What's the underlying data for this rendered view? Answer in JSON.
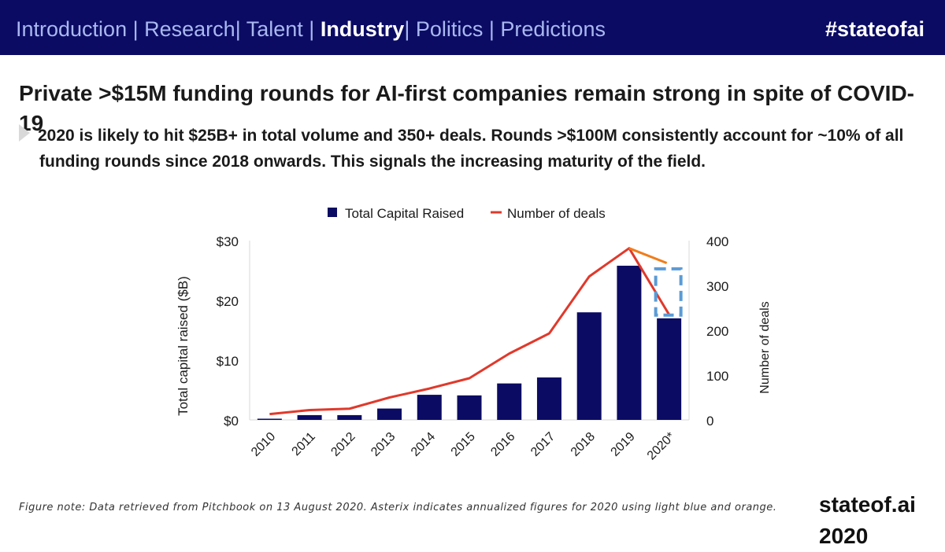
{
  "header": {
    "nav": [
      {
        "label": "Introduction",
        "active": false
      },
      {
        "label": "Research",
        "active": false
      },
      {
        "label": "Talent",
        "active": false
      },
      {
        "label": "Industry",
        "active": true
      },
      {
        "label": "Politics",
        "active": false
      },
      {
        "label": "Predictions",
        "active": false
      }
    ],
    "hashtag": "#stateofai"
  },
  "slide": {
    "title": "Private >$15M funding rounds for AI-first companies remain strong in spite of COVID-19",
    "subtitle_line1": "2020 is likely to hit $25B+ in total volume and 350+ deals. Rounds >$100M consistently account for ~10% of all",
    "subtitle_line2": "funding rounds since 2018 onwards. This signals the increasing maturity of the field."
  },
  "footer": {
    "note": "Figure note: Data retrieved from Pitchbook on 13 August 2020. Asterix indicates annualized figures for 2020 using light blue and orange.",
    "brand": "stateof.ai 2020"
  },
  "colors": {
    "bar": "#0b0b64",
    "line": "#e0392b",
    "projection_line": "#f07d1a",
    "projection_box": "#5b9bd5"
  },
  "chart_data": {
    "type": "bar",
    "categories": [
      "2010",
      "2011",
      "2012",
      "2013",
      "2014",
      "2015",
      "2016",
      "2017",
      "2018",
      "2019",
      "2020*"
    ],
    "series": [
      {
        "name": "Total Capital Raised",
        "type": "bar",
        "axis": "left",
        "values": [
          0.2,
          0.8,
          0.8,
          1.9,
          4.2,
          4.1,
          6.1,
          7.1,
          18,
          25.8,
          17
        ]
      },
      {
        "name": "Number of deals",
        "type": "line",
        "axis": "right",
        "values": [
          13,
          22,
          25,
          50,
          70,
          93,
          148,
          193,
          320,
          383,
          235
        ]
      }
    ],
    "annualized": {
      "capital_raised": 25.8,
      "deals": 350
    },
    "legend": [
      "Total Capital Raised",
      "Number of deals"
    ],
    "legend_position": "top-center",
    "ylabel": "Total capital raised ($B)",
    "y2label": "Number of deals",
    "ylim": [
      0,
      30
    ],
    "y2lim": [
      0,
      400
    ],
    "yticks": [
      "$0",
      "$10",
      "$20",
      "$30"
    ],
    "y2ticks": [
      "0",
      "100",
      "200",
      "300",
      "400"
    ]
  }
}
